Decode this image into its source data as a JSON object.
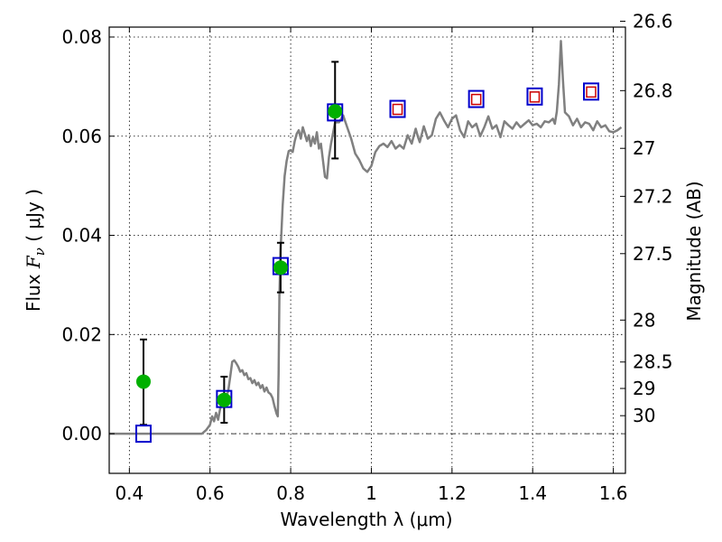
{
  "chart_data": {
    "type": "line",
    "title": "",
    "xlabel": "Wavelength  λ (μm)",
    "ylabel_main": "Flux ",
    "ylabel_symbol": "F",
    "ylabel_subscript": "ν",
    "ylabel_units": "  ( μJy )",
    "y2label": "Magnitude (AB)",
    "xlim": [
      0.35,
      1.63
    ],
    "ylim": [
      -0.008,
      0.082
    ],
    "grid": true,
    "x_ticks": [
      {
        "value": 0.4,
        "label": "0.4"
      },
      {
        "value": 0.6,
        "label": "0.6"
      },
      {
        "value": 0.8,
        "label": "0.8"
      },
      {
        "value": 1.0,
        "label": "1"
      },
      {
        "value": 1.2,
        "label": "1.2"
      },
      {
        "value": 1.4,
        "label": "1.4"
      },
      {
        "value": 1.6,
        "label": "1.6"
      }
    ],
    "y_ticks": [
      {
        "value": 0.0,
        "label": "0.00"
      },
      {
        "value": 0.02,
        "label": "0.02"
      },
      {
        "value": 0.04,
        "label": "0.04"
      },
      {
        "value": 0.06,
        "label": "0.06"
      },
      {
        "value": 0.08,
        "label": "0.08"
      }
    ],
    "y2_ticks": [
      {
        "value": 26.6,
        "label": "26.6"
      },
      {
        "value": 26.8,
        "label": "26.8"
      },
      {
        "value": 27.0,
        "label": "27"
      },
      {
        "value": 27.2,
        "label": "27.2"
      },
      {
        "value": 27.5,
        "label": "27.5"
      },
      {
        "value": 28.0,
        "label": "28"
      },
      {
        "value": 28.5,
        "label": "28.5"
      },
      {
        "value": 29.0,
        "label": "29"
      },
      {
        "value": 30.0,
        "label": "30"
      }
    ],
    "zero_line": {
      "y": 0.0,
      "style": "dash-dot"
    },
    "colors": {
      "template": "#808080",
      "observed": "#00b000",
      "model_box": "#0000cc",
      "model_inner": "#cc0000",
      "errorbar": "#000000"
    },
    "template_spectrum": {
      "name": "",
      "points": [
        [
          0.35,
          0.0
        ],
        [
          0.58,
          0.0
        ],
        [
          0.59,
          0.0007
        ],
        [
          0.6,
          0.0018
        ],
        [
          0.605,
          0.0035
        ],
        [
          0.61,
          0.0025
        ],
        [
          0.615,
          0.0042
        ],
        [
          0.62,
          0.0028
        ],
        [
          0.625,
          0.005
        ],
        [
          0.63,
          0.0062
        ],
        [
          0.635,
          0.0055
        ],
        [
          0.64,
          0.0075
        ],
        [
          0.645,
          0.0085
        ],
        [
          0.65,
          0.0115
        ],
        [
          0.655,
          0.0145
        ],
        [
          0.66,
          0.0148
        ],
        [
          0.665,
          0.0142
        ],
        [
          0.67,
          0.0135
        ],
        [
          0.675,
          0.0125
        ],
        [
          0.68,
          0.0128
        ],
        [
          0.685,
          0.0118
        ],
        [
          0.69,
          0.0122
        ],
        [
          0.695,
          0.011
        ],
        [
          0.7,
          0.0112
        ],
        [
          0.705,
          0.0102
        ],
        [
          0.71,
          0.0108
        ],
        [
          0.715,
          0.0098
        ],
        [
          0.72,
          0.0103
        ],
        [
          0.725,
          0.0092
        ],
        [
          0.73,
          0.0098
        ],
        [
          0.735,
          0.0085
        ],
        [
          0.74,
          0.0093
        ],
        [
          0.745,
          0.0083
        ],
        [
          0.75,
          0.008
        ],
        [
          0.755,
          0.0072
        ],
        [
          0.76,
          0.0055
        ],
        [
          0.765,
          0.004
        ],
        [
          0.768,
          0.0035
        ],
        [
          0.77,
          0.012
        ],
        [
          0.772,
          0.028
        ],
        [
          0.775,
          0.037
        ],
        [
          0.78,
          0.046
        ],
        [
          0.785,
          0.052
        ],
        [
          0.79,
          0.055
        ],
        [
          0.795,
          0.057
        ],
        [
          0.8,
          0.0572
        ],
        [
          0.805,
          0.0568
        ],
        [
          0.81,
          0.059
        ],
        [
          0.815,
          0.0605
        ],
        [
          0.82,
          0.0612
        ],
        [
          0.825,
          0.0595
        ],
        [
          0.83,
          0.0618
        ],
        [
          0.835,
          0.0605
        ],
        [
          0.84,
          0.059
        ],
        [
          0.845,
          0.0602
        ],
        [
          0.85,
          0.058
        ],
        [
          0.855,
          0.0598
        ],
        [
          0.86,
          0.0585
        ],
        [
          0.865,
          0.0608
        ],
        [
          0.87,
          0.0575
        ],
        [
          0.875,
          0.0585
        ],
        [
          0.88,
          0.0552
        ],
        [
          0.885,
          0.0518
        ],
        [
          0.89,
          0.0515
        ],
        [
          0.895,
          0.0558
        ],
        [
          0.9,
          0.0585
        ],
        [
          0.91,
          0.0628
        ],
        [
          0.92,
          0.0628
        ],
        [
          0.93,
          0.0642
        ],
        [
          0.94,
          0.0618
        ],
        [
          0.95,
          0.0595
        ],
        [
          0.96,
          0.0565
        ],
        [
          0.97,
          0.0552
        ],
        [
          0.98,
          0.0535
        ],
        [
          0.99,
          0.0528
        ],
        [
          1.0,
          0.054
        ],
        [
          1.01,
          0.0568
        ],
        [
          1.02,
          0.058
        ],
        [
          1.03,
          0.0585
        ],
        [
          1.04,
          0.0578
        ],
        [
          1.05,
          0.059
        ],
        [
          1.06,
          0.0575
        ],
        [
          1.07,
          0.0582
        ],
        [
          1.08,
          0.0575
        ],
        [
          1.09,
          0.0602
        ],
        [
          1.1,
          0.0585
        ],
        [
          1.11,
          0.0615
        ],
        [
          1.115,
          0.06
        ],
        [
          1.12,
          0.0588
        ],
        [
          1.13,
          0.062
        ],
        [
          1.14,
          0.0595
        ],
        [
          1.15,
          0.0602
        ],
        [
          1.16,
          0.0635
        ],
        [
          1.17,
          0.0648
        ],
        [
          1.18,
          0.0632
        ],
        [
          1.19,
          0.0618
        ],
        [
          1.2,
          0.0635
        ],
        [
          1.21,
          0.0642
        ],
        [
          1.22,
          0.0612
        ],
        [
          1.23,
          0.0598
        ],
        [
          1.24,
          0.063
        ],
        [
          1.25,
          0.0618
        ],
        [
          1.26,
          0.0625
        ],
        [
          1.27,
          0.06
        ],
        [
          1.28,
          0.0618
        ],
        [
          1.29,
          0.064
        ],
        [
          1.3,
          0.0615
        ],
        [
          1.31,
          0.0622
        ],
        [
          1.32,
          0.0598
        ],
        [
          1.33,
          0.063
        ],
        [
          1.34,
          0.0622
        ],
        [
          1.35,
          0.0615
        ],
        [
          1.36,
          0.0628
        ],
        [
          1.37,
          0.0618
        ],
        [
          1.38,
          0.0625
        ],
        [
          1.39,
          0.0632
        ],
        [
          1.4,
          0.0622
        ],
        [
          1.41,
          0.0625
        ],
        [
          1.42,
          0.0618
        ],
        [
          1.43,
          0.063
        ],
        [
          1.44,
          0.0628
        ],
        [
          1.45,
          0.0635
        ],
        [
          1.455,
          0.0625
        ],
        [
          1.46,
          0.065
        ],
        [
          1.465,
          0.0705
        ],
        [
          1.47,
          0.0792
        ],
        [
          1.475,
          0.0715
        ],
        [
          1.48,
          0.0648
        ],
        [
          1.49,
          0.064
        ],
        [
          1.5,
          0.0622
        ],
        [
          1.51,
          0.0635
        ],
        [
          1.52,
          0.0618
        ],
        [
          1.53,
          0.0628
        ],
        [
          1.54,
          0.0625
        ],
        [
          1.55,
          0.0612
        ],
        [
          1.56,
          0.063
        ],
        [
          1.57,
          0.0618
        ],
        [
          1.58,
          0.0622
        ],
        [
          1.59,
          0.061
        ],
        [
          1.6,
          0.0608
        ],
        [
          1.61,
          0.0612
        ],
        [
          1.62,
          0.0618
        ]
      ]
    },
    "observed_points": [
      {
        "x": 0.435,
        "y": 0.0105,
        "y_low": 0.0018,
        "y_high": 0.019
      },
      {
        "x": 0.635,
        "y": 0.0068,
        "y_low": 0.0022,
        "y_high": 0.0115
      },
      {
        "x": 0.775,
        "y": 0.0335,
        "y_low": 0.0285,
        "y_high": 0.0385
      },
      {
        "x": 0.91,
        "y": 0.065,
        "y_low": 0.0555,
        "y_high": 0.075
      }
    ],
    "model_points": [
      {
        "x": 0.435,
        "y": 0.0,
        "inner": false
      },
      {
        "x": 0.635,
        "y": 0.007,
        "inner": false
      },
      {
        "x": 0.775,
        "y": 0.0338,
        "inner": false
      },
      {
        "x": 0.91,
        "y": 0.0648,
        "inner": false
      },
      {
        "x": 1.065,
        "y": 0.0655,
        "inner": true
      },
      {
        "x": 1.26,
        "y": 0.0675,
        "inner": true
      },
      {
        "x": 1.405,
        "y": 0.068,
        "inner": true
      },
      {
        "x": 1.545,
        "y": 0.069,
        "inner": true
      }
    ]
  }
}
